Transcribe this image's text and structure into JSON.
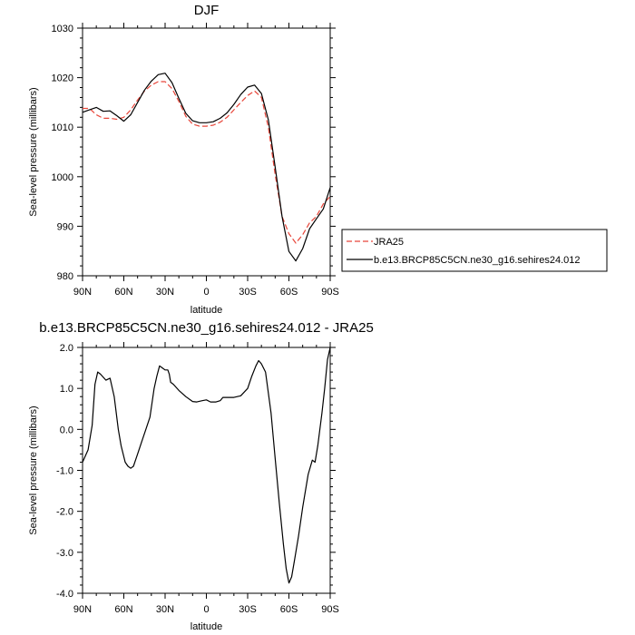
{
  "chart_data": [
    {
      "type": "line",
      "title": "DJF",
      "xlabel": "latitude",
      "ylabel": "Sea-level pressure (millibars)",
      "x_tick_labels": [
        "90N",
        "60N",
        "30N",
        "0",
        "30S",
        "60S",
        "90S"
      ],
      "x_tick_values": [
        90,
        60,
        30,
        0,
        -30,
        -60,
        -90
      ],
      "xlim": [
        90,
        -90
      ],
      "ylim": [
        980,
        1030
      ],
      "y_ticks": [
        980,
        990,
        1000,
        1010,
        1020,
        1030
      ],
      "y_tick_labels": [
        "980",
        "990",
        "1000",
        "1010",
        "1020",
        "1030"
      ],
      "legend_position": "right",
      "series": [
        {
          "name": "JRA25",
          "color": "#e8463a",
          "dash": "dashed",
          "x": [
            90,
            85,
            80,
            75,
            70,
            65,
            60,
            55,
            50,
            45,
            40,
            35,
            30,
            25,
            20,
            15,
            10,
            5,
            0,
            -5,
            -10,
            -15,
            -20,
            -25,
            -30,
            -35,
            -40,
            -45,
            -50,
            -55,
            -60,
            -65,
            -70,
            -75,
            -80,
            -85,
            -90
          ],
          "y": [
            1013.8,
            1013.8,
            1012.5,
            1011.8,
            1011.8,
            1011.6,
            1012.0,
            1013.5,
            1015.5,
            1017.3,
            1018.5,
            1019.2,
            1019.2,
            1017.8,
            1015.2,
            1012.2,
            1010.6,
            1010.2,
            1010.2,
            1010.4,
            1011.0,
            1012.0,
            1013.5,
            1015.0,
            1016.4,
            1017.3,
            1016.0,
            1010.0,
            1000.5,
            992.0,
            988.5,
            986.6,
            988.3,
            990.7,
            992.0,
            994.5,
            996.0
          ]
        },
        {
          "name": "b.e13.BRCP85C5CN.ne30_g16.sehires24.012",
          "color": "#000000",
          "dash": "solid",
          "x": [
            90,
            85,
            80,
            75,
            70,
            65,
            60,
            55,
            50,
            45,
            40,
            35,
            30,
            25,
            20,
            15,
            10,
            5,
            0,
            -5,
            -10,
            -15,
            -20,
            -25,
            -30,
            -35,
            -40,
            -45,
            -50,
            -55,
            -60,
            -65,
            -70,
            -75,
            -80,
            -85,
            -90
          ],
          "y": [
            1013.0,
            1013.5,
            1014.0,
            1013.2,
            1013.3,
            1012.3,
            1011.2,
            1012.5,
            1015.0,
            1017.5,
            1019.3,
            1020.6,
            1020.9,
            1019.0,
            1015.8,
            1012.8,
            1011.3,
            1010.9,
            1010.9,
            1011.1,
            1011.8,
            1012.9,
            1014.6,
            1016.6,
            1018.1,
            1018.5,
            1016.8,
            1011.5,
            1002.0,
            992.0,
            984.9,
            983.0,
            985.5,
            989.5,
            991.5,
            993.5,
            997.8
          ]
        }
      ]
    },
    {
      "type": "line",
      "title": "b.e13.BRCP85C5CN.ne30_g16.sehires24.012 - JRA25",
      "xlabel": "latitude",
      "ylabel": "Sea-level pressure (millibars)",
      "x_tick_labels": [
        "90N",
        "60N",
        "30N",
        "0",
        "30S",
        "60S",
        "90S"
      ],
      "x_tick_values": [
        90,
        60,
        30,
        0,
        -30,
        -60,
        -90
      ],
      "xlim": [
        90,
        -90
      ],
      "ylim": [
        -4.0,
        2.0
      ],
      "y_ticks": [
        -4.0,
        -3.0,
        -2.0,
        -1.0,
        0.0,
        1.0,
        2.0
      ],
      "y_tick_labels": [
        "-4.0",
        "-3.0",
        "-2.0",
        "-1.0",
        "0.0",
        "1.0",
        "2.0"
      ],
      "series": [
        {
          "color": "#000000",
          "dash": "solid",
          "x": [
            90,
            86,
            83,
            81,
            79,
            77,
            73,
            70,
            67,
            64,
            62,
            59,
            57,
            55,
            53,
            50,
            47,
            44,
            41,
            38,
            36,
            34,
            32,
            30,
            28,
            27,
            26,
            24,
            20,
            15,
            10,
            7,
            3,
            0,
            -3,
            -7,
            -10,
            -12,
            -15,
            -20,
            -25,
            -30,
            -33,
            -36,
            -38,
            -40,
            -43,
            -47,
            -50,
            -53,
            -56,
            -58,
            -60,
            -62,
            -64,
            -67,
            -70,
            -74,
            -77,
            -79,
            -81,
            -84,
            -86,
            -88,
            -90
          ],
          "y": [
            -0.8,
            -0.5,
            0.1,
            1.1,
            1.4,
            1.35,
            1.2,
            1.25,
            0.8,
            0.0,
            -0.4,
            -0.8,
            -0.9,
            -0.95,
            -0.9,
            -0.6,
            -0.3,
            0.0,
            0.3,
            1.0,
            1.3,
            1.55,
            1.5,
            1.45,
            1.45,
            1.35,
            1.15,
            1.1,
            0.95,
            0.8,
            0.68,
            0.67,
            0.7,
            0.72,
            0.67,
            0.67,
            0.7,
            0.78,
            0.78,
            0.78,
            0.82,
            1.0,
            1.3,
            1.55,
            1.68,
            1.6,
            1.4,
            0.4,
            -0.7,
            -1.8,
            -2.8,
            -3.4,
            -3.75,
            -3.6,
            -3.2,
            -2.6,
            -1.9,
            -1.1,
            -0.75,
            -0.8,
            -0.4,
            0.4,
            1.0,
            1.7,
            2.0
          ]
        }
      ]
    }
  ]
}
